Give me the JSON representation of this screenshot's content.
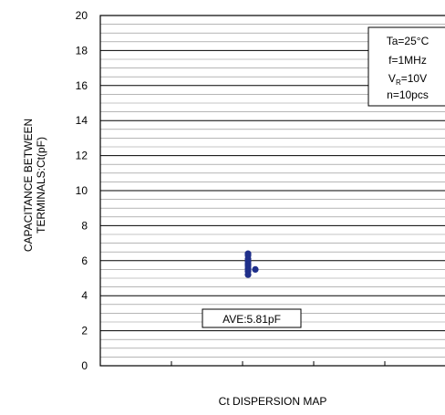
{
  "chart_data": {
    "type": "scatter",
    "title": "",
    "xlabel": "Ct DISPERSION MAP",
    "ylabel_lines": [
      "CAPACITANCE BETWEEN",
      "TERMINALS:Ct(pF)"
    ],
    "ylim": [
      0,
      20
    ],
    "yticks": [
      0,
      2,
      4,
      6,
      8,
      10,
      12,
      14,
      16,
      18,
      20
    ],
    "minor_grid_step": 0.5,
    "grid": true,
    "point_color": "#1f2f8a",
    "conditions": {
      "ta": "Ta=25°C",
      "freq": "f=1MHz",
      "vr_prefix": "V",
      "vr_sub": "R",
      "vr_value": "=10V",
      "n": "n=10pcs"
    },
    "average_label": "AVE:5.81pF",
    "points": [
      {
        "x": 0,
        "y": 6.4
      },
      {
        "x": 0,
        "y": 6.3
      },
      {
        "x": 0,
        "y": 6.1
      },
      {
        "x": 0,
        "y": 5.95
      },
      {
        "x": 0,
        "y": 5.8
      },
      {
        "x": 0,
        "y": 5.7
      },
      {
        "x": 0,
        "y": 5.55
      },
      {
        "x": 0,
        "y": 5.4
      },
      {
        "x": 0,
        "y": 5.2
      },
      {
        "x": 1,
        "y": 5.5
      }
    ]
  }
}
